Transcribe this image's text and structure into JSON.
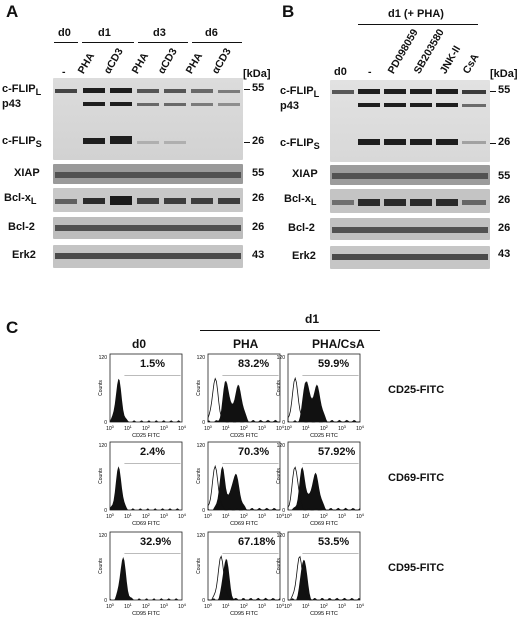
{
  "panels": {
    "a": "A",
    "b": "B",
    "c": "C"
  },
  "panel_a": {
    "groups": [
      "d0",
      "d1",
      "d3",
      "d6"
    ],
    "lanes": [
      "-",
      "PHA",
      "αCD3",
      "PHA",
      "αCD3",
      "PHA",
      "αCD3"
    ],
    "kda_label": "[kDa]",
    "rows": [
      {
        "label": "c-FLIP",
        "sub": "L",
        "kda": "55"
      },
      {
        "label": "p43",
        "sub": "",
        "kda": ""
      },
      {
        "label": "c-FLIP",
        "sub": "S",
        "kda": "26"
      },
      {
        "label": "XIAP",
        "sub": "",
        "kda": "55"
      },
      {
        "label": "Bcl-x",
        "sub": "L",
        "kda": "26"
      },
      {
        "label": "Bcl-2",
        "sub": "",
        "kda": "26"
      },
      {
        "label": "Erk2",
        "sub": "",
        "kda": "43"
      }
    ]
  },
  "panel_b": {
    "header": "d1 (+ PHA)",
    "lanes": [
      "d0",
      "-",
      "PD098059",
      "SB203580",
      "JNK-II",
      "CsA"
    ],
    "kda_label": "[kDa]",
    "rows": [
      {
        "label": "c-FLIP",
        "sub": "L",
        "kda": "55"
      },
      {
        "label": "p43",
        "sub": "",
        "kda": ""
      },
      {
        "label": "c-FLIP",
        "sub": "S",
        "kda": "26"
      },
      {
        "label": "XIAP",
        "sub": "",
        "kda": "55"
      },
      {
        "label": "Bcl-x",
        "sub": "L",
        "kda": "26"
      },
      {
        "label": "Bcl-2",
        "sub": "",
        "kda": "26"
      },
      {
        "label": "Erk2",
        "sub": "",
        "kda": "43"
      }
    ]
  },
  "panel_c": {
    "top_header": "d1",
    "columns": [
      "d0",
      "PHA",
      "PHA/CsA"
    ],
    "markers": [
      "CD25-FITC",
      "CD69-FITC",
      "CD95-FITC"
    ],
    "xaxis_labels": [
      "CD25 FITC",
      "CD69 FITC",
      "CD95 FITC"
    ],
    "yaxis_label": "Counts",
    "y_ticks": [
      "0",
      "120"
    ],
    "percentages": [
      [
        "1.5%",
        "83.2%",
        "59.9%"
      ],
      [
        "2.4%",
        "70.3%",
        "57.92%"
      ],
      [
        "32.9%",
        "67.18%",
        "53.5%"
      ]
    ]
  }
}
